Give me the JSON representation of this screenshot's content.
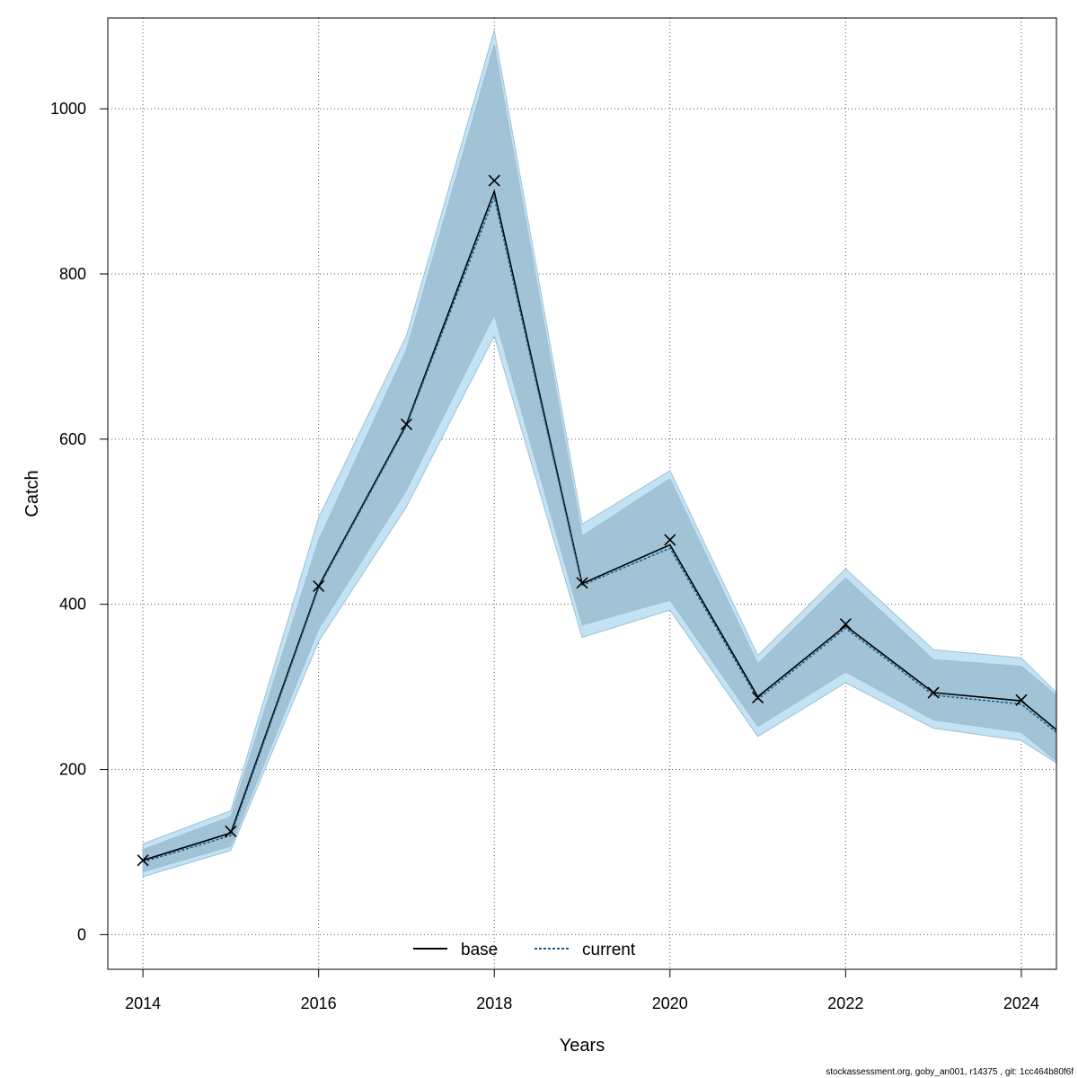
{
  "chart_data": {
    "type": "line",
    "xlabel": "Years",
    "ylabel": "Catch",
    "xlim": [
      2013.6,
      2024.4
    ],
    "ylim": [
      -42,
      1110
    ],
    "x_ticks": [
      "2014",
      "2016",
      "2018",
      "2020",
      "2022",
      "2024"
    ],
    "y_ticks": [
      "0",
      "200",
      "400",
      "600",
      "800",
      "1000"
    ],
    "grid": true,
    "legend_position": "bottom-center",
    "x": [
      2014,
      2015,
      2016,
      2017,
      2018,
      2019,
      2020,
      2021,
      2022,
      2023,
      2024,
      2024.4
    ],
    "series": [
      {
        "name": "base",
        "color": "#000000",
        "line_style": "solid",
        "values": [
          90,
          123,
          422,
          618,
          900,
          425,
          472,
          288,
          374,
          293,
          283,
          248
        ],
        "band_upper": [
          103,
          143,
          478,
          708,
          1078,
          483,
          552,
          328,
          432,
          333,
          325,
          290
        ],
        "band_lower": [
          76,
          107,
          370,
          538,
          750,
          375,
          405,
          252,
          318,
          260,
          245,
          210
        ]
      },
      {
        "name": "current",
        "color": "#1f5f8b",
        "line_style": "dashed",
        "values": [
          88,
          120,
          420,
          616,
          893,
          423,
          468,
          285,
          371,
          290,
          279,
          245
        ],
        "band_upper": [
          110,
          150,
          505,
          725,
          1095,
          497,
          562,
          338,
          443,
          345,
          335,
          293
        ],
        "band_lower": [
          70,
          102,
          355,
          518,
          725,
          360,
          393,
          240,
          305,
          250,
          235,
          208
        ]
      }
    ],
    "observed": {
      "x": [
        2014,
        2015,
        2016,
        2017,
        2018,
        2019,
        2020,
        2021,
        2022,
        2023,
        2024
      ],
      "values": [
        90,
        125,
        422,
        618,
        913,
        426,
        478,
        287,
        376,
        293,
        284
      ]
    },
    "colors": {
      "band_current": "#c3e3f4",
      "band_base": "#a2c3d5",
      "band_edge": "#9ec0d4",
      "grid": "#555555"
    }
  },
  "footnote": "stockassessment.org, goby_an001, r14375 , git: 1cc464b80f6f"
}
